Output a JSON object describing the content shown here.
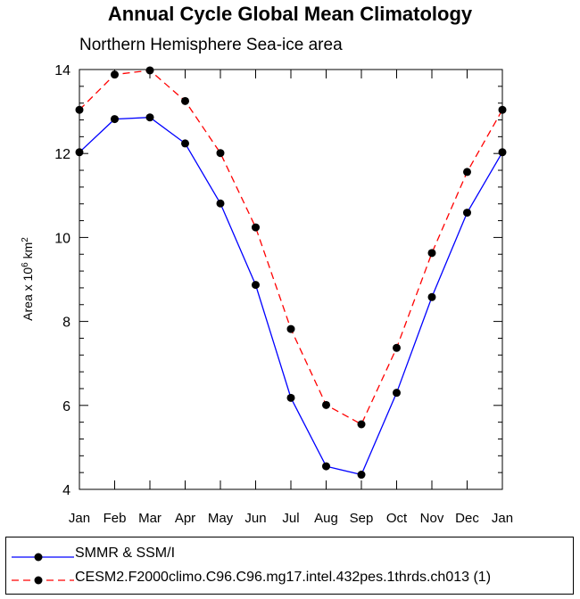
{
  "chart_data": {
    "type": "line",
    "title": "Annual Cycle Global Mean Climatology",
    "subtitle": "Northern Hemisphere Sea-ice area",
    "ylabel": "Area x 10",
    "ylabel_sup": "6",
    "ylabel_unit": " km",
    "ylabel_unit_sup": "2",
    "xlabel": "",
    "categories": [
      "Jan",
      "Feb",
      "Mar",
      "Apr",
      "May",
      "Jun",
      "Jul",
      "Aug",
      "Sep",
      "Oct",
      "Nov",
      "Dec",
      "Jan"
    ],
    "ylim": [
      4,
      14
    ],
    "yticks": [
      4,
      6,
      8,
      10,
      12,
      14
    ],
    "ytick_labels": [
      "4",
      "6",
      "8",
      "10",
      "12",
      "14"
    ],
    "legend_position": "bottom",
    "series": [
      {
        "name": "SMMR & SSM/I",
        "color": "#0000ff",
        "dash": "solid",
        "values": [
          12.03,
          12.82,
          12.86,
          12.24,
          10.81,
          8.87,
          6.18,
          4.55,
          4.35,
          6.3,
          8.58,
          10.59,
          12.03
        ]
      },
      {
        "name": "CESM2.F2000climo.C96.C96.mg17.intel.432pes.1thrds.ch013 (1)",
        "color": "#ff0000",
        "dash": "dashed",
        "values": [
          13.04,
          13.88,
          13.98,
          13.25,
          12.01,
          10.24,
          7.82,
          6.01,
          5.55,
          7.37,
          9.63,
          11.56,
          13.04
        ]
      }
    ]
  }
}
